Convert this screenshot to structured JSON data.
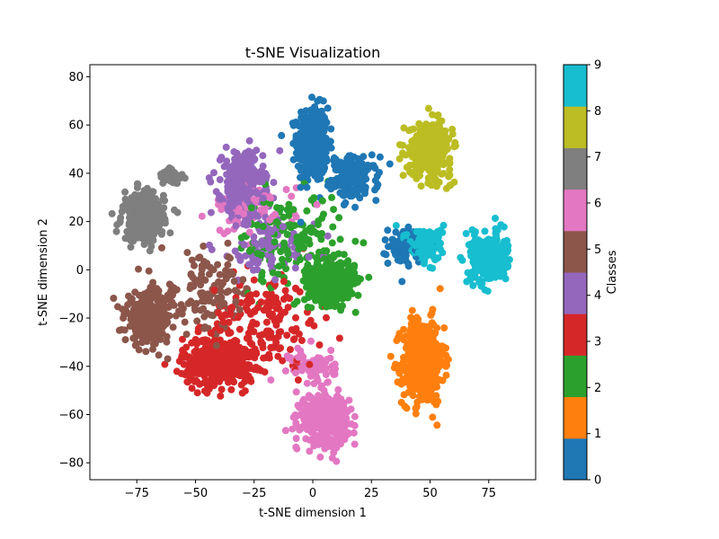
{
  "chart_data": {
    "type": "scatter",
    "title": "t-SNE Visualization",
    "xlabel": "t-SNE dimension 1",
    "ylabel": "t-SNE dimension 2",
    "xlim": [
      -95,
      95
    ],
    "ylim": [
      -87,
      85
    ],
    "xticks": [
      -75,
      -50,
      -25,
      0,
      25,
      50,
      75
    ],
    "xtick_labels": [
      "−75",
      "−50",
      "−25",
      "0",
      "25",
      "50",
      "75"
    ],
    "yticks": [
      -80,
      -60,
      -40,
      -20,
      0,
      20,
      40,
      60,
      80
    ],
    "ytick_labels": [
      "−80",
      "−60",
      "−40",
      "−20",
      "0",
      "20",
      "40",
      "60",
      "80"
    ],
    "grid": false,
    "colorbar": {
      "label": "Classes",
      "ticks": [
        "0",
        "1",
        "2",
        "3",
        "4",
        "5",
        "6",
        "7",
        "8",
        "9"
      ],
      "colors": [
        "#1f77b4",
        "#ff7f0e",
        "#2ca02c",
        "#d62728",
        "#9467bd",
        "#8c564b",
        "#e377c2",
        "#7f7f7f",
        "#bcbd22",
        "#17becf"
      ]
    },
    "clusters": [
      {
        "class": 0,
        "center": [
          0,
          52
        ],
        "spread": [
          6,
          14
        ],
        "n": 420
      },
      {
        "class": 0,
        "center": [
          18,
          38
        ],
        "spread": [
          9,
          8
        ],
        "n": 140
      },
      {
        "class": 0,
        "center": [
          40,
          10
        ],
        "spread": [
          7,
          7
        ],
        "n": 90
      },
      {
        "class": 1,
        "center": [
          47,
          -38
        ],
        "spread": [
          8,
          16
        ],
        "n": 500
      },
      {
        "class": 2,
        "center": [
          8,
          -5
        ],
        "spread": [
          9,
          8
        ],
        "n": 380
      },
      {
        "class": 2,
        "center": [
          -10,
          12
        ],
        "spread": [
          20,
          18
        ],
        "n": 150
      },
      {
        "class": 3,
        "center": [
          -40,
          -38
        ],
        "spread": [
          14,
          9
        ],
        "n": 460
      },
      {
        "class": 3,
        "center": [
          -20,
          -20
        ],
        "spread": [
          22,
          18
        ],
        "n": 160
      },
      {
        "class": 4,
        "center": [
          -30,
          35
        ],
        "spread": [
          8,
          12
        ],
        "n": 330
      },
      {
        "class": 4,
        "center": [
          -20,
          10
        ],
        "spread": [
          20,
          14
        ],
        "n": 90
      },
      {
        "class": 5,
        "center": [
          -70,
          -20
        ],
        "spread": [
          9,
          9
        ],
        "n": 330
      },
      {
        "class": 5,
        "center": [
          -45,
          -10
        ],
        "spread": [
          18,
          15
        ],
        "n": 130
      },
      {
        "class": 6,
        "center": [
          5,
          -62
        ],
        "spread": [
          9,
          9
        ],
        "n": 420
      },
      {
        "class": 6,
        "center": [
          0,
          -40
        ],
        "spread": [
          9,
          7
        ],
        "n": 70
      },
      {
        "class": 6,
        "center": [
          -25,
          25
        ],
        "spread": [
          16,
          10
        ],
        "n": 70
      },
      {
        "class": 7,
        "center": [
          -72,
          22
        ],
        "spread": [
          8,
          9
        ],
        "n": 320
      },
      {
        "class": 7,
        "center": [
          -60,
          38
        ],
        "spread": [
          5,
          4
        ],
        "n": 40
      },
      {
        "class": 8,
        "center": [
          50,
          50
        ],
        "spread": [
          8,
          10
        ],
        "n": 420
      },
      {
        "class": 9,
        "center": [
          75,
          5
        ],
        "spread": [
          7,
          9
        ],
        "n": 340
      },
      {
        "class": 9,
        "center": [
          48,
          10
        ],
        "spread": [
          7,
          7
        ],
        "n": 120
      }
    ]
  }
}
